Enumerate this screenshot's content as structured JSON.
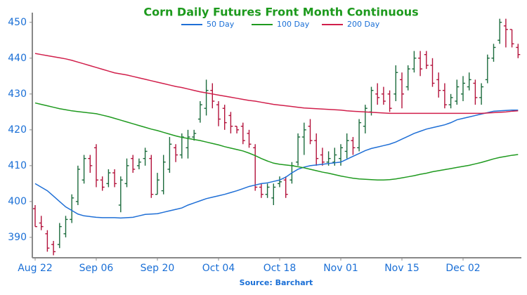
{
  "chart_data": {
    "type": "ohlc",
    "title": "Corn Daily Futures Front Month Continuous",
    "source": "Source: Barchart",
    "categories": [
      "Aug 22",
      null,
      null,
      null,
      null,
      null,
      null,
      null,
      null,
      null,
      "Sep 06",
      null,
      null,
      null,
      null,
      null,
      null,
      null,
      null,
      null,
      "Sep 20",
      null,
      null,
      null,
      null,
      null,
      null,
      null,
      null,
      null,
      "Oct 04",
      null,
      null,
      null,
      null,
      null,
      null,
      null,
      null,
      null,
      "Oct 18",
      null,
      null,
      null,
      null,
      null,
      null,
      null,
      null,
      null,
      "Nov 01",
      null,
      null,
      null,
      null,
      null,
      null,
      null,
      null,
      null,
      "Nov 15",
      null,
      null,
      null,
      null,
      null,
      null,
      null,
      null,
      null,
      "Dec 02",
      null,
      null,
      null,
      null,
      null,
      null,
      null,
      null,
      null
    ],
    "open": [
      398,
      394,
      391,
      388,
      388,
      391,
      395,
      400,
      406,
      412,
      415,
      406,
      405,
      408,
      399,
      405,
      412,
      410,
      412,
      412,
      402,
      403,
      409,
      415,
      413,
      415,
      418,
      423,
      426,
      431,
      427,
      426,
      424,
      421,
      421,
      419,
      415,
      404,
      402,
      401,
      405,
      406,
      406,
      411,
      418,
      421,
      417,
      413,
      411,
      411,
      412,
      414,
      417,
      415,
      421,
      425,
      430,
      430,
      430,
      430,
      434,
      432,
      437,
      440,
      441,
      438,
      434,
      431,
      427,
      428,
      430,
      432,
      433,
      429,
      434,
      440,
      445,
      449,
      448,
      443
    ],
    "high": [
      399,
      396,
      392,
      389,
      394,
      396,
      402,
      410,
      413,
      413,
      416,
      407,
      409,
      409,
      407,
      412,
      413,
      412,
      415,
      413,
      408,
      413,
      418,
      416,
      419,
      420,
      420,
      428,
      434,
      433,
      428,
      427,
      425,
      421,
      422,
      420,
      416,
      405,
      405,
      405,
      407,
      407,
      411,
      419,
      422,
      423,
      419,
      415,
      414,
      415,
      416,
      419,
      418,
      423,
      427,
      432,
      433,
      432,
      431,
      438,
      436,
      438,
      442,
      442,
      442,
      440,
      436,
      433,
      430,
      434,
      435,
      436,
      434,
      433,
      441,
      444,
      451,
      451,
      448,
      444
    ],
    "low": [
      393,
      392,
      386,
      385,
      387,
      390,
      394,
      399,
      405,
      408,
      404,
      403,
      404,
      404,
      397,
      404,
      408,
      409,
      410,
      401,
      402,
      402,
      408,
      411,
      412,
      412,
      417,
      422,
      424,
      426,
      421,
      420,
      419,
      419,
      416,
      415,
      403,
      401,
      401,
      399,
      404,
      401,
      405,
      410,
      413,
      416,
      410,
      410,
      410,
      410,
      410,
      412,
      413,
      414,
      419,
      424,
      427,
      427,
      425,
      428,
      426,
      431,
      436,
      435,
      437,
      432,
      429,
      426,
      426,
      427,
      428,
      431,
      427,
      427,
      433,
      439,
      444,
      443,
      443,
      440
    ],
    "close": [
      393,
      393,
      387,
      386,
      393,
      395,
      401,
      409,
      412,
      410,
      406,
      404,
      408,
      405,
      406,
      410,
      409,
      411,
      414,
      402,
      406,
      411,
      416,
      413,
      418,
      418,
      419,
      427,
      431,
      428,
      423,
      422,
      421,
      420,
      417,
      416,
      404,
      402,
      404,
      404,
      405.5,
      402,
      410,
      418,
      420,
      417,
      412,
      411,
      412,
      413,
      415,
      417,
      415,
      422,
      426,
      431,
      429,
      428,
      426,
      436,
      430,
      437,
      440,
      437,
      438,
      433,
      431,
      427,
      429,
      432,
      433,
      434,
      429,
      432,
      440,
      443,
      450,
      448,
      444,
      441
    ],
    "up_color": "#1b6b3c",
    "down_color": "#b3123b",
    "lines": [
      {
        "name": "50 Day",
        "color": "#1f6fd6",
        "values": [
          405,
          404,
          403,
          401.5,
          400,
          398.5,
          397.5,
          396.5,
          396,
          395.8,
          395.6,
          395.5,
          395.5,
          395.5,
          395.4,
          395.5,
          395.6,
          396,
          396.4,
          396.5,
          396.6,
          397,
          397.4,
          397.8,
          398.2,
          399,
          399.6,
          400.2,
          400.8,
          401.2,
          401.6,
          402,
          402.5,
          403,
          403.6,
          404.2,
          404.6,
          405,
          405.2,
          405.6,
          406,
          406.8,
          408,
          409,
          409.6,
          410,
          410.2,
          410.4,
          410.6,
          410.8,
          411,
          411.8,
          412.6,
          413.4,
          414.2,
          414.8,
          415.2,
          415.6,
          416,
          416.6,
          417.4,
          418.2,
          419,
          419.6,
          420.2,
          420.6,
          421,
          421.4,
          422,
          422.8,
          423.2,
          423.6,
          424,
          424.4,
          424.8,
          425.2,
          425.3,
          425.4,
          425.5,
          425.5
        ]
      },
      {
        "name": "100 Day",
        "color": "#1f9a1f",
        "values": [
          427.5,
          427.1,
          426.7,
          426.3,
          425.9,
          425.6,
          425.3,
          425.1,
          424.9,
          424.7,
          424.5,
          424.1,
          423.7,
          423.2,
          422.7,
          422.2,
          421.7,
          421.2,
          420.7,
          420.2,
          419.8,
          419.3,
          418.8,
          418.3,
          417.9,
          417.6,
          417.3,
          417,
          416.6,
          416.2,
          415.8,
          415.3,
          414.9,
          414.5,
          414.1,
          413.5,
          412.8,
          412,
          411.3,
          410.7,
          410.4,
          410.2,
          410,
          409.7,
          409.4,
          409,
          408.6,
          408.2,
          407.9,
          407.5,
          407.1,
          406.8,
          406.5,
          406.3,
          406.2,
          406.1,
          406,
          406,
          406.1,
          406.3,
          406.6,
          406.9,
          407.2,
          407.6,
          407.9,
          408.3,
          408.6,
          408.9,
          409.2,
          409.5,
          409.8,
          410.1,
          410.5,
          410.9,
          411.4,
          411.9,
          412.3,
          412.6,
          412.9,
          413.1
        ]
      },
      {
        "name": "200 Day",
        "color": "#d11f4b",
        "values": [
          441.3,
          441,
          440.7,
          440.4,
          440.1,
          439.8,
          439.4,
          438.9,
          438.4,
          437.9,
          437.4,
          436.9,
          436.4,
          435.9,
          435.6,
          435.3,
          434.9,
          434.5,
          434.1,
          433.7,
          433.3,
          432.9,
          432.5,
          432.1,
          431.8,
          431.4,
          431,
          430.6,
          430.3,
          430,
          429.7,
          429.4,
          429.1,
          428.8,
          428.5,
          428.2,
          428,
          427.7,
          427.4,
          427.1,
          426.9,
          426.7,
          426.5,
          426.3,
          426.1,
          426,
          425.9,
          425.8,
          425.7,
          425.6,
          425.5,
          425.3,
          425.2,
          425.1,
          425,
          424.9,
          424.8,
          424.7,
          424.6,
          424.6,
          424.6,
          424.6,
          424.6,
          424.6,
          424.6,
          424.6,
          424.6,
          424.6,
          424.6,
          424.6,
          424.6,
          424.6,
          424.6,
          424.6,
          424.7,
          424.8,
          424.9,
          425,
          425.2,
          425.3
        ]
      }
    ],
    "ylim": [
      384.3,
      452.7
    ],
    "yticks": [
      390,
      400,
      410,
      420,
      430,
      440,
      450
    ]
  }
}
